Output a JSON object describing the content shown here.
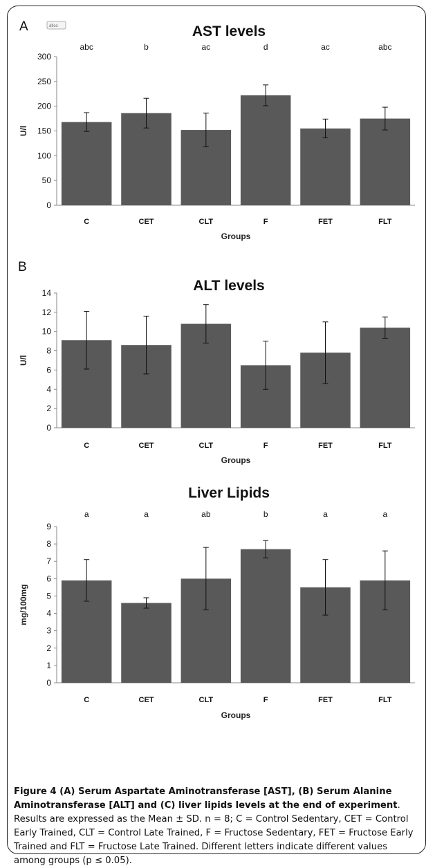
{
  "chart_data": [
    {
      "type": "bar",
      "panel": "A",
      "title": "AST levels",
      "xlabel": "Groups",
      "ylabel": "U/l",
      "categories": [
        "C",
        "CET",
        "CLT",
        "F",
        "FET",
        "FLT"
      ],
      "values": [
        168,
        186,
        152,
        222,
        155,
        175
      ],
      "errors": [
        19,
        30,
        34,
        21,
        19,
        23
      ],
      "significance": [
        "abc",
        "b",
        "ac",
        "d",
        "ac",
        "abc"
      ],
      "ylim": [
        0,
        300
      ],
      "yticks": [
        0,
        50,
        100,
        150,
        200,
        250,
        300
      ],
      "grid": false,
      "bar_color": "#595959",
      "corner_label": "áfico"
    },
    {
      "type": "bar",
      "panel": "B",
      "title": "ALT levels",
      "xlabel": "Groups",
      "ylabel": "U/l",
      "categories": [
        "C",
        "CET",
        "CLT",
        "F",
        "FET",
        "FLT"
      ],
      "values": [
        9.1,
        8.6,
        10.8,
        6.5,
        7.8,
        10.4
      ],
      "errors": [
        3.0,
        3.0,
        2.0,
        2.5,
        3.2,
        1.1
      ],
      "significance": [],
      "ylim": [
        0,
        14
      ],
      "yticks": [
        0,
        2,
        4,
        6,
        8,
        10,
        12,
        14
      ],
      "grid": false,
      "bar_color": "#595959"
    },
    {
      "type": "bar",
      "panel": "",
      "title": "Liver Lipids",
      "xlabel": "Groups",
      "ylabel": "mg/100mg",
      "categories": [
        "C",
        "CET",
        "CLT",
        "F",
        "FET",
        "FLT"
      ],
      "values": [
        5.9,
        4.6,
        6.0,
        7.7,
        5.5,
        5.9
      ],
      "errors": [
        1.2,
        0.3,
        1.8,
        0.5,
        1.6,
        1.7
      ],
      "significance": [
        "a",
        "a",
        "ab",
        "b",
        "a",
        "a"
      ],
      "ylim": [
        0,
        9
      ],
      "yticks": [
        0,
        1,
        2,
        3,
        4,
        5,
        6,
        7,
        8,
        9
      ],
      "grid": false,
      "bar_color": "#595959"
    }
  ],
  "caption": {
    "title": "Figure 4 (A) Serum Aspartate Aminotransferase [AST], (B) Serum Alanine Aminotransferase [ALT] and (C) liver lipids levels at the end of experiment",
    "body": ". Results are expressed as the Mean ± SD. n = 8; C = Control Sedentary, CET = Control Early Trained, CLT = Control Late Trained, F = Fructose Sedentary, FET = Fructose Early Trained and FLT = Fructose Late Trained. Different letters indicate different values among groups (p ≤ 0.05)."
  }
}
